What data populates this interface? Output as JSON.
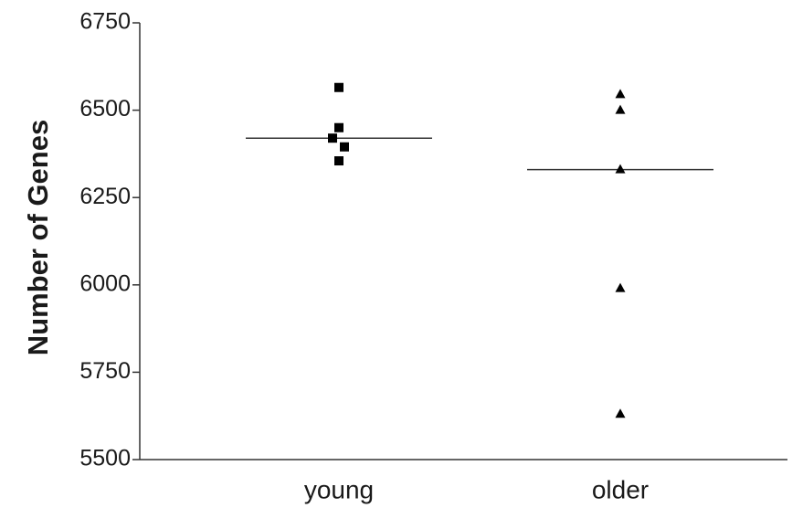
{
  "chart_data": {
    "type": "scatter",
    "title": "",
    "xlabel": "",
    "ylabel": "Number of Genes",
    "categories": [
      "young",
      "older"
    ],
    "ylim": [
      5500,
      6750
    ],
    "yticks": [
      "5500",
      "5750",
      "6000",
      "6250",
      "6500",
      "6750"
    ],
    "grid": false,
    "series": [
      {
        "category": "young",
        "marker": "square",
        "values": [
          6565,
          6450,
          6420,
          6395,
          6355
        ],
        "mean": 6420
      },
      {
        "category": "older",
        "marker": "triangle",
        "values": [
          6545,
          6500,
          6330,
          5990,
          5630
        ],
        "mean": 6330
      }
    ],
    "colors": {
      "points": "#000000",
      "mean_line": "#333333",
      "axis": "#333333"
    }
  }
}
